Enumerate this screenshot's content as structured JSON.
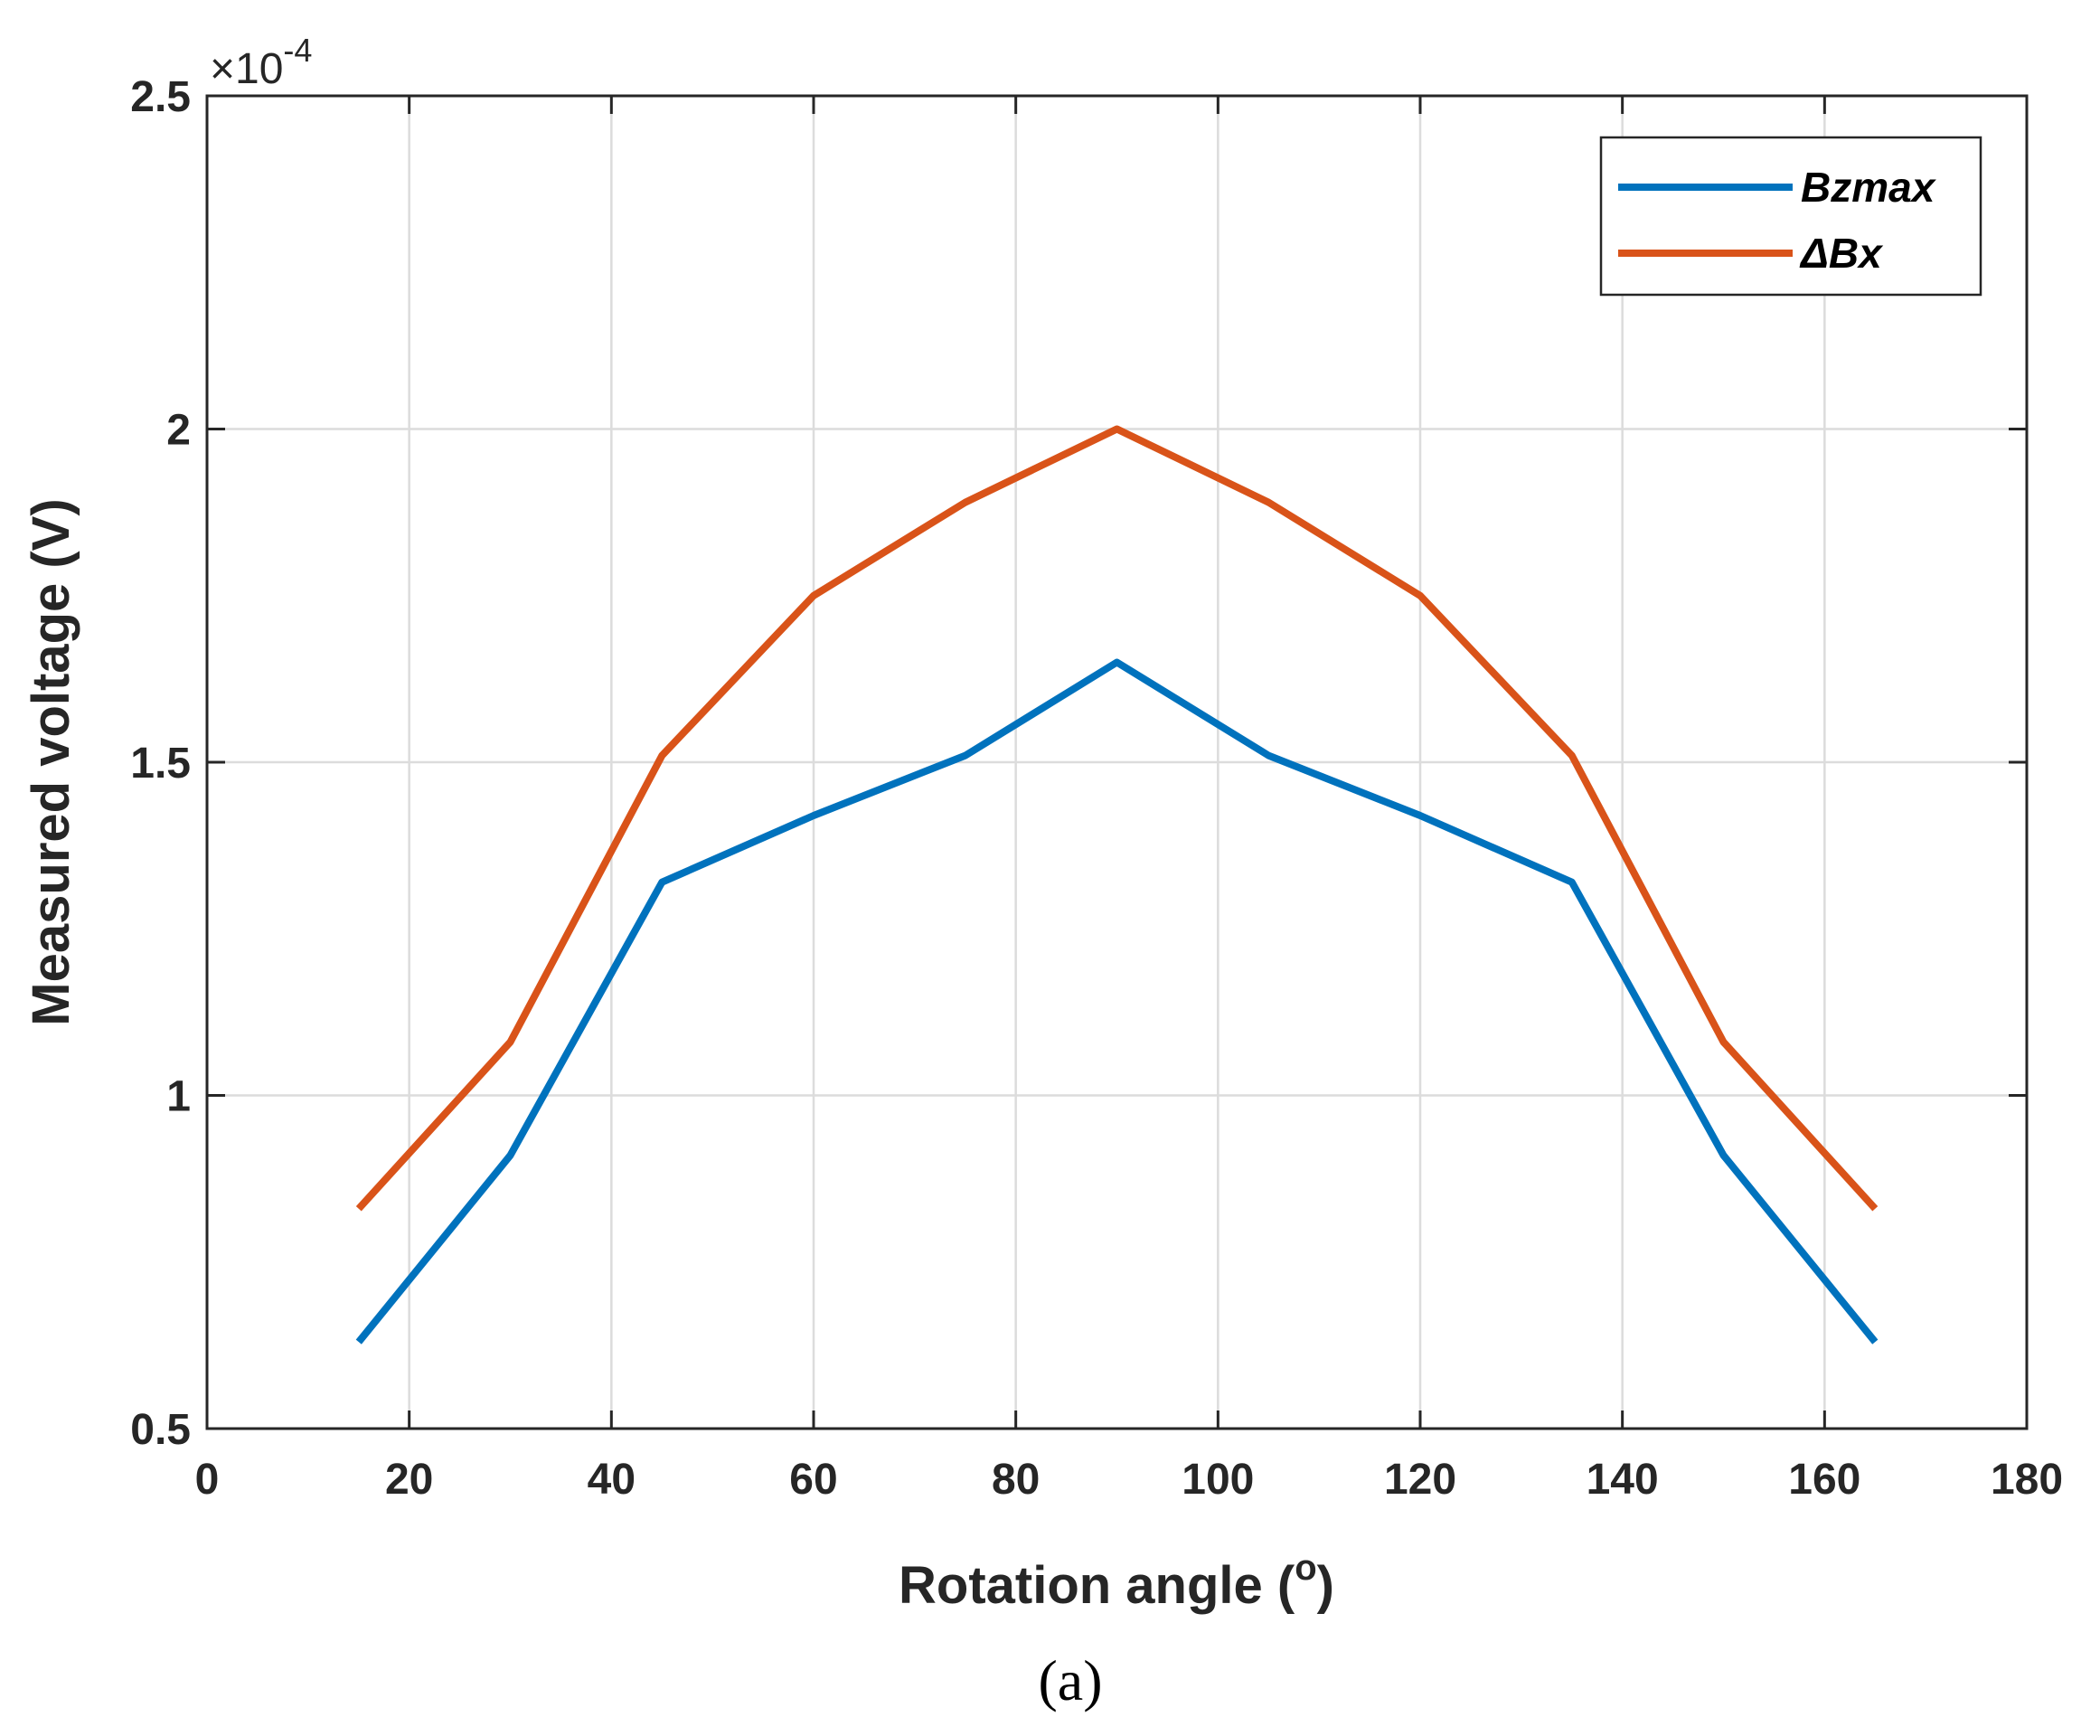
{
  "chart_data": {
    "type": "line",
    "title": "",
    "caption": "(a)",
    "xlabel": "Rotation angle (",
    "xlabel_super": "o",
    "xlabel_tail": ")",
    "ylabel": "Measured voltage (V)",
    "y_exponent": {
      "base": "×10",
      "power": "-4"
    },
    "xlim": [
      0,
      180
    ],
    "ylim": [
      0.5,
      2.5
    ],
    "x_ticks": [
      0,
      20,
      40,
      60,
      80,
      100,
      120,
      140,
      160,
      180
    ],
    "x_tick_labels": [
      "0",
      "20",
      "40",
      "60",
      "80",
      "100",
      "120",
      "140",
      "160",
      "180"
    ],
    "y_ticks": [
      0.5,
      1,
      1.5,
      2,
      2.5
    ],
    "y_tick_labels": [
      "0.5",
      "1",
      "1.5",
      "2",
      "2.5"
    ],
    "grid": true,
    "legend_position": "top-right",
    "x": [
      15,
      30,
      45,
      60,
      75,
      90,
      105,
      120,
      135,
      150,
      165
    ],
    "series": [
      {
        "name": "Bzmax",
        "color": "#0072BD",
        "values": [
          0.63,
          0.91,
          1.32,
          1.42,
          1.51,
          1.65,
          1.51,
          1.42,
          1.32,
          0.91,
          0.63
        ]
      },
      {
        "name": "ΔBx",
        "color": "#D95319",
        "values": [
          0.83,
          1.08,
          1.51,
          1.75,
          1.89,
          2.0,
          1.89,
          1.75,
          1.51,
          1.08,
          0.83
        ]
      }
    ]
  }
}
